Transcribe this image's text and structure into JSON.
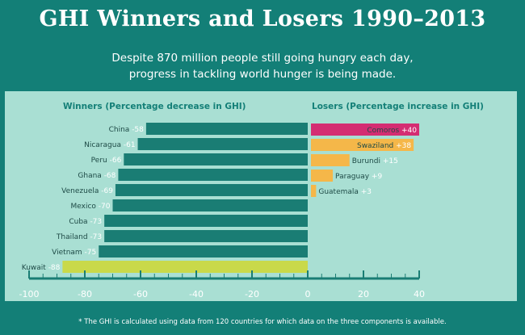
{
  "title": "GHI Winners and Losers 1990–2013",
  "subtitle": [
    "Despite 870 million people still going hungry each day,",
    "progress in tackling world hunger is being made."
  ],
  "footnote": "* The GHI is calculated using data from 120 countries for which data on the three components is available.",
  "colors": {
    "winner": "#1a7d74",
    "winner_highlight": "#c9d94a",
    "loser": "#f5b749",
    "loser_highlight": "#d42d72",
    "axis": "#1a7d74"
  },
  "chart_data": {
    "type": "bar",
    "orientation": "horizontal",
    "title": "GHI Winners and Losers 1990–2013",
    "xlim": [
      -100,
      40
    ],
    "xticks": [
      "-100",
      "-80",
      "-60",
      "-40",
      "-20",
      "0",
      "20",
      "40"
    ],
    "groups": [
      {
        "name": "Winners (Percentage decrease in GHI)",
        "categories": [
          "China",
          "Nicaragua",
          "Peru",
          "Ghana",
          "Venezuela",
          "Mexico",
          "Cuba",
          "Thailand",
          "Vietnam",
          "Kuwait"
        ],
        "values": [
          -58,
          -61,
          -66,
          -68,
          -69,
          -70,
          -73,
          -73,
          -75,
          -88
        ],
        "labels": [
          "-58",
          "-61",
          "-66",
          "-68",
          "-69",
          "-70",
          "-73",
          "-73",
          "-75",
          "-88"
        ]
      },
      {
        "name": "Losers (Percentage increase in GHI)",
        "categories": [
          "Comoros",
          "Swaziland",
          "Burundi",
          "Paraguay",
          "Guatemala"
        ],
        "values": [
          40,
          38,
          15,
          9,
          3
        ],
        "labels": [
          "+40",
          "+38",
          "+15",
          "+9",
          "+3"
        ]
      }
    ]
  }
}
